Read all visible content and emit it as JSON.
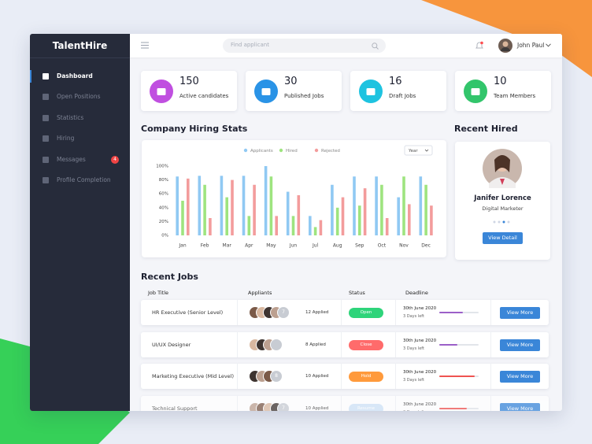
{
  "sidebar": {
    "brand": "TalentHire",
    "items": [
      {
        "label": "Dashboard",
        "active": true
      },
      {
        "label": "Open Positions"
      },
      {
        "label": "Statistics"
      },
      {
        "label": "Hiring"
      },
      {
        "label": "Messages",
        "badge": 4
      },
      {
        "label": "Profile Completion"
      }
    ]
  },
  "topbar": {
    "search_placeholder": "Find applicant",
    "user": "John Paul"
  },
  "stats": [
    {
      "value": 150,
      "label": "Active candidates",
      "color": "#c04fe0"
    },
    {
      "value": 30,
      "label": "Published Jobs",
      "color": "#2a93e6"
    },
    {
      "value": 16,
      "label": "Draft Jobs",
      "color": "#1ec3e0"
    },
    {
      "value": 10,
      "label": "Team Members",
      "color": "#32c56b"
    }
  ],
  "hiring_stats_title": "Company Hiring Stats",
  "chart_data": {
    "type": "bar",
    "period": "Year",
    "categories": [
      "Jan",
      "Feb",
      "Mar",
      "Apr",
      "May",
      "Jun",
      "Jul",
      "Aug",
      "Sep",
      "Oct",
      "Nov",
      "Dec"
    ],
    "series": [
      {
        "name": "Applicants",
        "color": "#90c9f3",
        "values": [
          85,
          86,
          86,
          86,
          100,
          63,
          28,
          73,
          85,
          85,
          55,
          85
        ]
      },
      {
        "name": "Hired",
        "color": "#9ee47f",
        "values": [
          50,
          73,
          55,
          28,
          85,
          28,
          12,
          40,
          43,
          73,
          85,
          73
        ]
      },
      {
        "name": "Rejected",
        "color": "#f39c9c",
        "values": [
          82,
          25,
          80,
          73,
          28,
          58,
          22,
          55,
          68,
          25,
          45,
          43
        ]
      }
    ],
    "ylim": [
      0,
      100
    ],
    "yticks": [
      {
        "value": 0,
        "label": "0%"
      },
      {
        "value": 20,
        "label": "20%"
      },
      {
        "value": 40,
        "label": "40%"
      },
      {
        "value": 60,
        "label": "60%"
      },
      {
        "value": 80,
        "label": "80%"
      },
      {
        "value": 100,
        "label": "100%"
      }
    ],
    "grid": false
  },
  "recent_hired": {
    "title": "Recent Hired",
    "name": "Janifer Lorence",
    "role": "Digital Marketer",
    "button": "View Detail"
  },
  "recent_jobs": {
    "title": "Recent Jobs",
    "columns": [
      "Job Title",
      "Appliants",
      "Status",
      "Deadline"
    ],
    "rows": [
      {
        "title": "HR Executive (Senior Level)",
        "more": 7,
        "applied": "12 Applied",
        "status": "Open",
        "status_color": "#2ed47a",
        "deadline": "30th June 2020",
        "days_left": "3 Days left",
        "progress": 60,
        "progress_color": "#9b5fc8",
        "action": "View More"
      },
      {
        "title": "UI/UX Designer",
        "applied": "8 Applied",
        "status": "Close",
        "status_color": "#ff6b6b",
        "deadline": "30th June 2020",
        "days_left": "3 Days left",
        "progress": 45,
        "progress_color": "#9b5fc8",
        "action": "View More"
      },
      {
        "title": "Marketing Executive (Mid Level)",
        "more": 8,
        "applied": "10 Applied",
        "status": "Hold",
        "status_color": "#ff9a3c",
        "deadline": "30th June 2020",
        "days_left": "3 Days left",
        "progress": 90,
        "progress_color": "#ef5350",
        "action": "View More"
      },
      {
        "title": "Technical Support",
        "more": 7,
        "applied": "10 Applied",
        "status": "Resume",
        "status_color": "#cfe3f7",
        "deadline": "30th June 2020",
        "days_left": "3 Days left",
        "progress": 70,
        "progress_color": "#ef5350",
        "action": "View More"
      }
    ]
  }
}
